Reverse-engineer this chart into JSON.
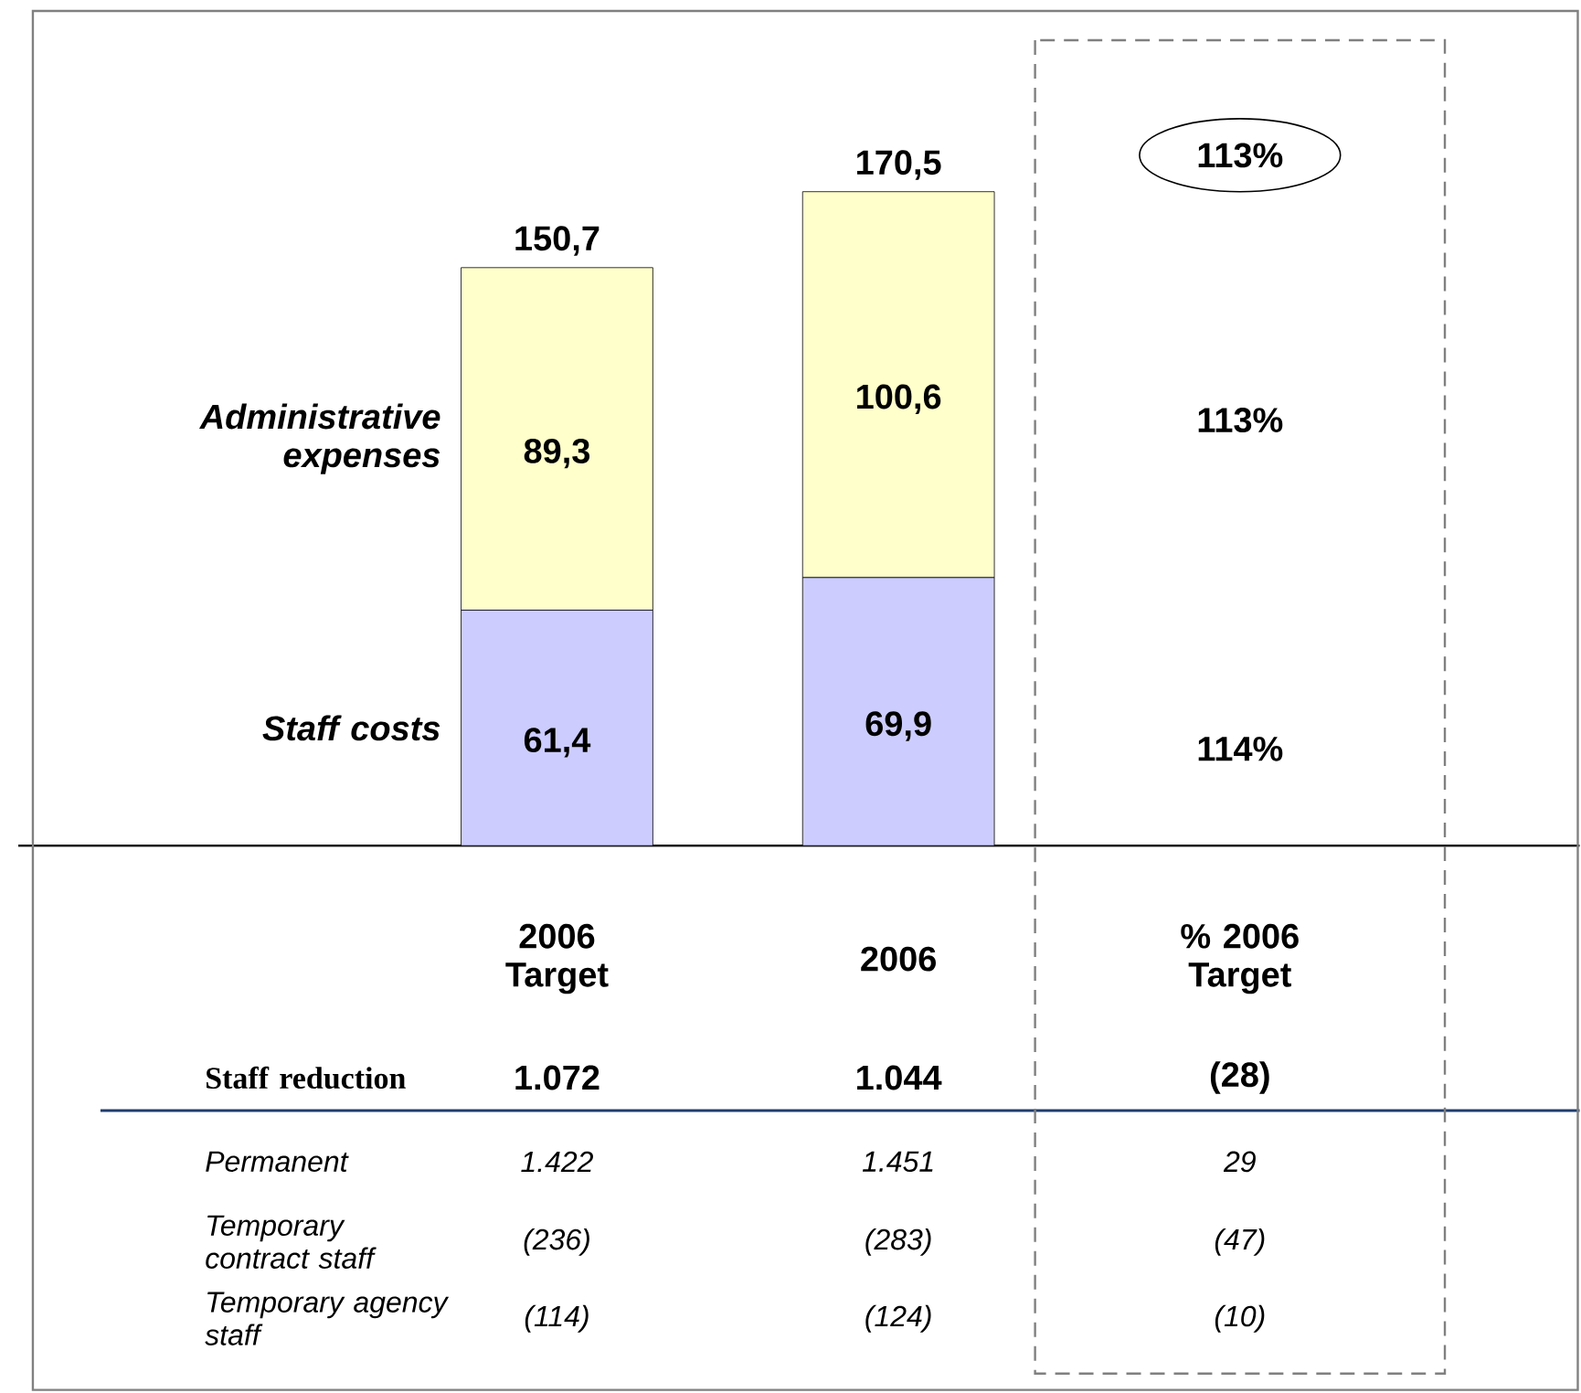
{
  "chart_data": {
    "type": "bar",
    "stacked": true,
    "legend": false,
    "categories": [
      "2006 Target",
      "2006",
      "% 2006 Target"
    ],
    "series": [
      {
        "name": "Staff costs",
        "color": "#ccccff",
        "values": [
          61.4,
          69.9,
          null
        ],
        "value_labels": [
          "61,4",
          "69,9",
          null
        ]
      },
      {
        "name": "Administrative expenses",
        "color": "#ffffcc",
        "values": [
          89.3,
          100.6,
          null
        ],
        "value_labels": [
          "89,3",
          "100,6",
          null
        ]
      }
    ],
    "totals": [
      "150,7",
      "170,5",
      null
    ],
    "annotations": [
      "113%",
      "113%",
      "114%",
      "Staff reduction",
      "1.072",
      "1.044",
      "(28)",
      "Permanent",
      "1.422",
      "1.451",
      "29",
      "Temporary contract staff",
      "(236)",
      "(283)",
      "(47)",
      "Temporary agency staff",
      "(114)",
      "(124)",
      "(10)"
    ]
  }
}
